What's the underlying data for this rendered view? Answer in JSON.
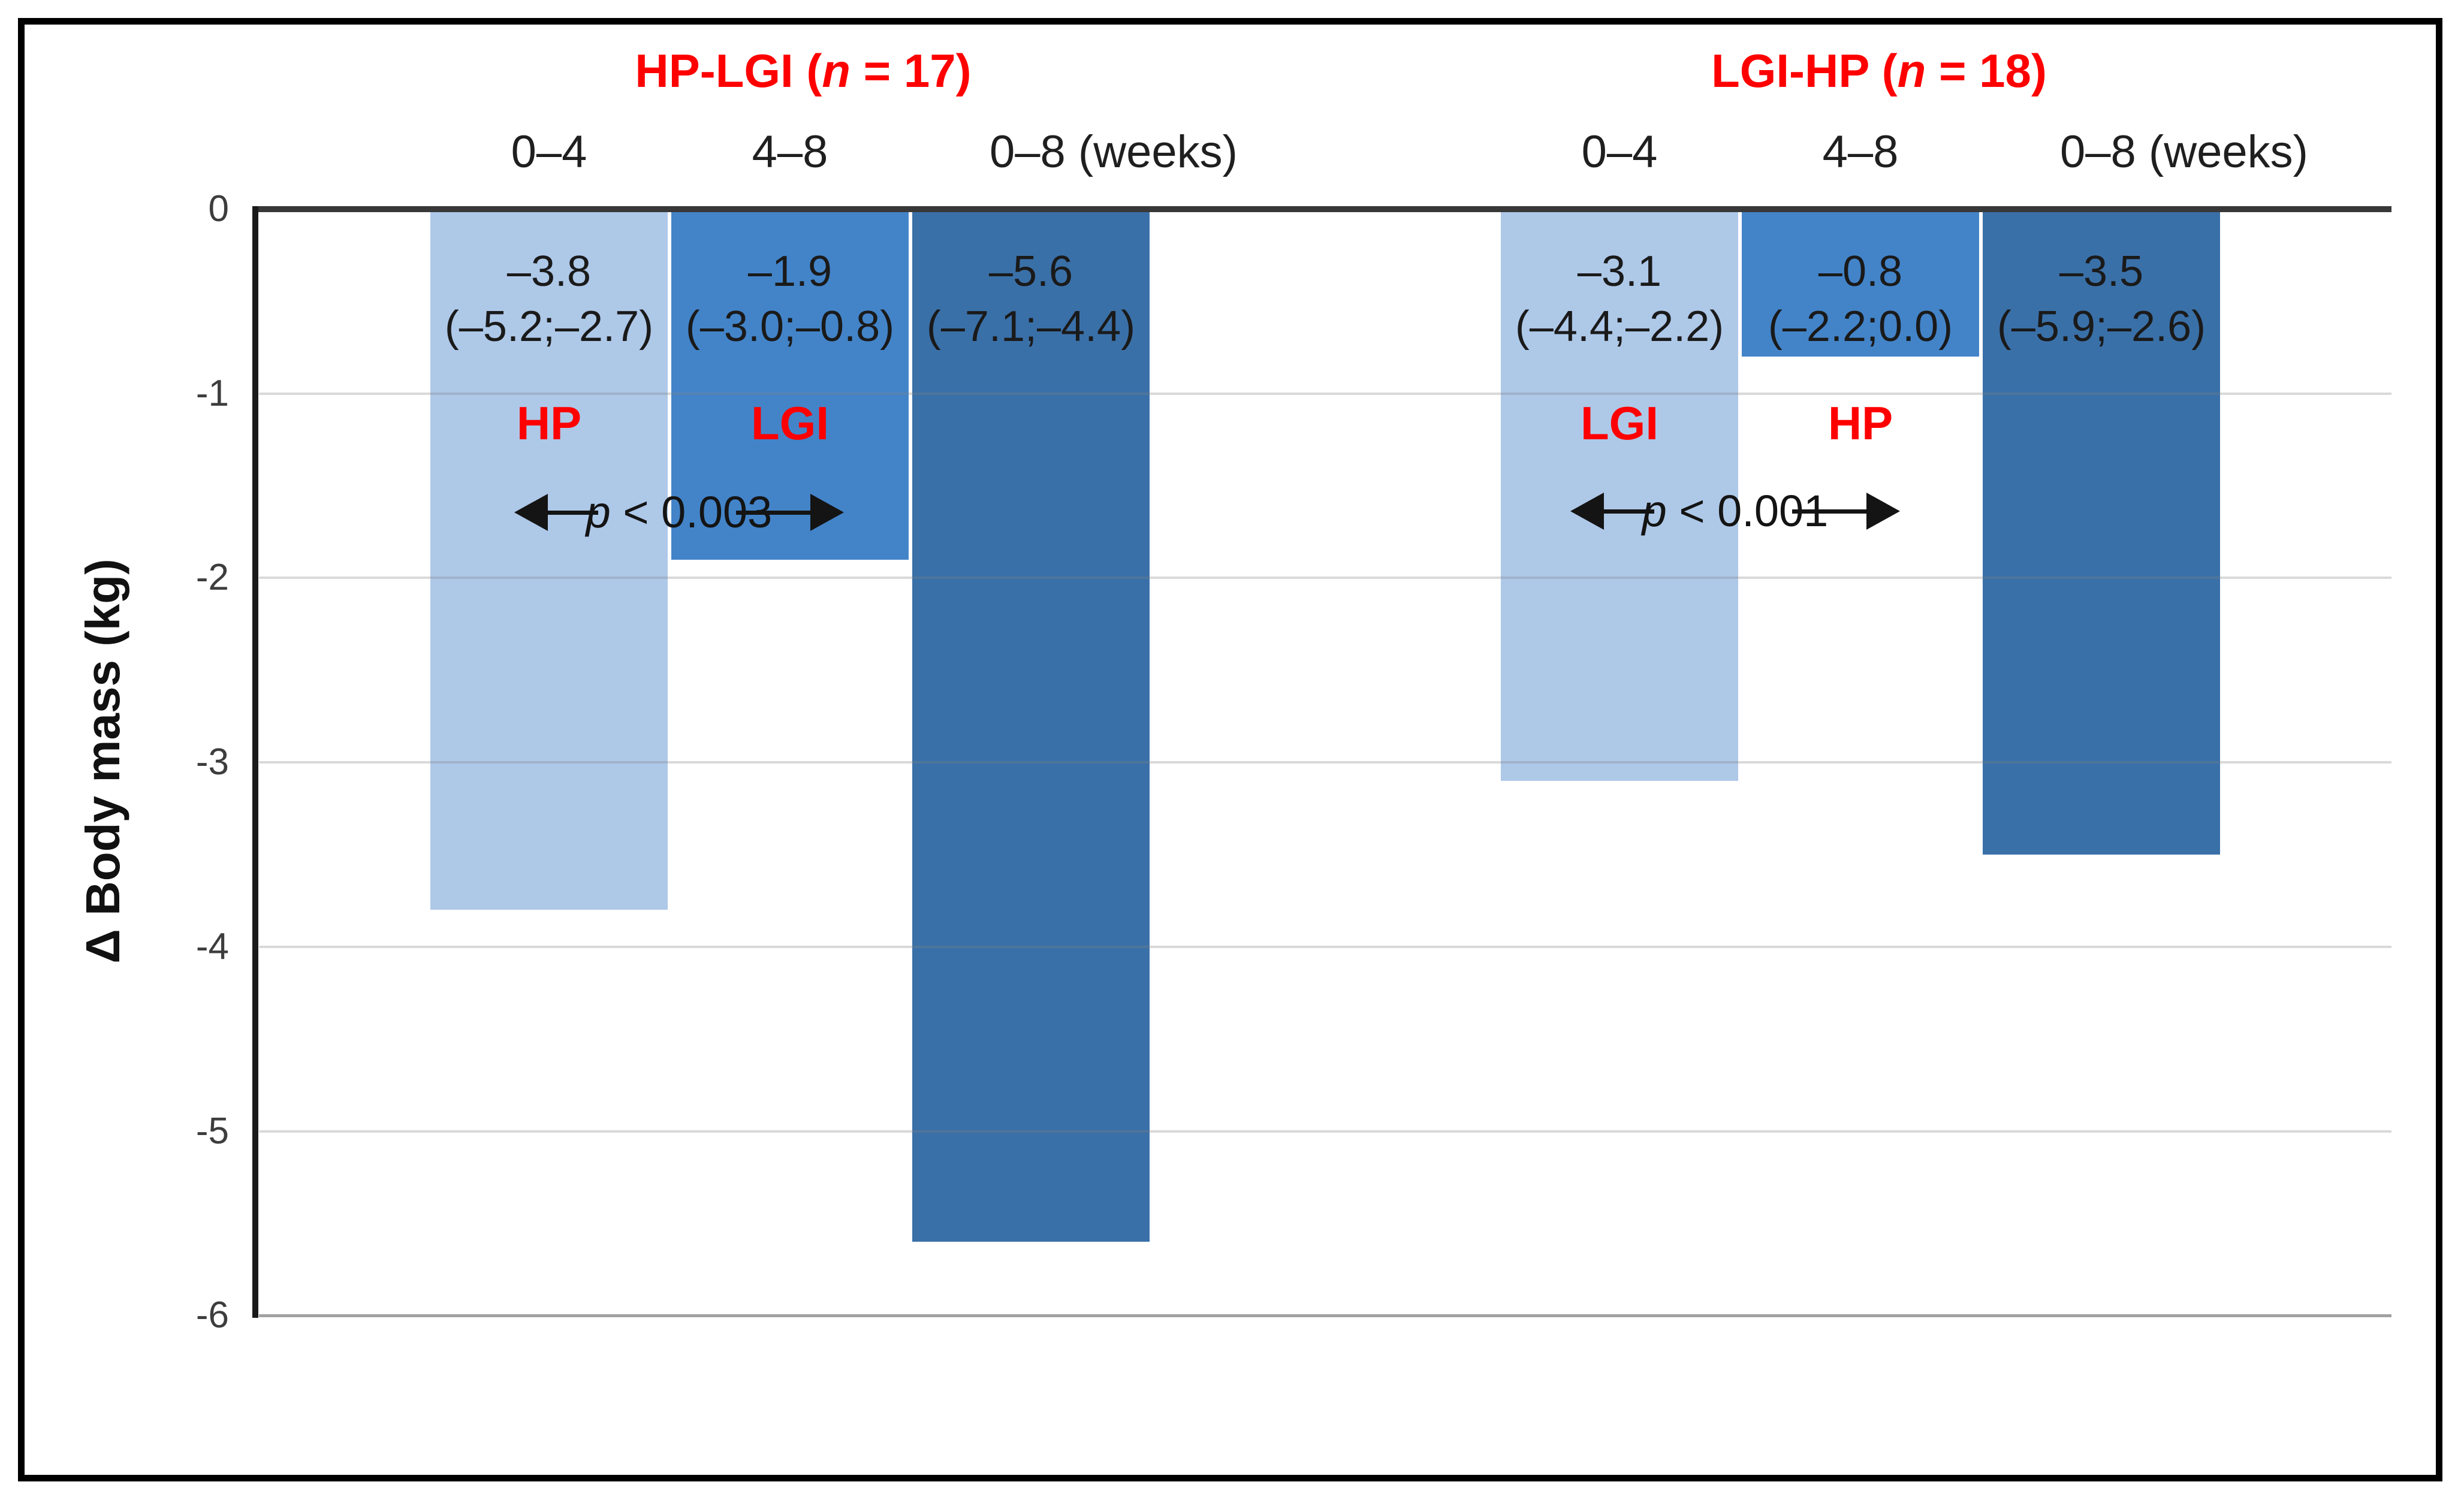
{
  "colors": {
    "bar_light": "#aec8e8",
    "bar_medium": "#4384c9",
    "bar_dark": "#3a70a8",
    "label_red": "#ff0000",
    "gridline": "rgba(128,128,128,0.30)",
    "gridline_last": "rgba(75,75,75,0.52)",
    "axis_black": "#1a1a1a"
  },
  "y_axis": {
    "title": "Δ Body mass (kg)",
    "tick_labels": [
      "0",
      "-1",
      "-2",
      "-3",
      "-4",
      "-5",
      "-6"
    ]
  },
  "chart_data": {
    "type": "bar",
    "title": "",
    "xlabel": "",
    "ylabel": "Δ Body mass (kg)",
    "ylim": [
      -6,
      0
    ],
    "yticks": [
      0,
      -1,
      -2,
      -3,
      -4,
      -5,
      -6
    ],
    "grid": true,
    "legend_position": "none",
    "groups": [
      {
        "title": {
          "pre": "HP-LGI (",
          "italic": "n",
          "post": " = 17)"
        },
        "n": 17,
        "p_annotation": {
          "italic": "p",
          "post": " < 0.003"
        },
        "bars": [
          {
            "period": "0–4",
            "value": -3.8,
            "ci": [
              -5.2,
              -2.7
            ],
            "value_label": "–3.8",
            "ci_label": "(–5.2;–2.7)",
            "diet": "HP",
            "shade": "light"
          },
          {
            "period": "4–8",
            "value": -1.9,
            "ci": [
              -3.0,
              -0.8
            ],
            "value_label": "–1.9",
            "ci_label": "(–3.0;–0.8)",
            "diet": "LGI",
            "shade": "medium"
          },
          {
            "period": "0–8 (weeks)",
            "value": -5.6,
            "ci": [
              -7.1,
              -4.4
            ],
            "value_label": "–5.6",
            "ci_label": "(–7.1;–4.4)",
            "diet": null,
            "shade": "dark"
          }
        ]
      },
      {
        "title": {
          "pre": "LGI-HP (",
          "italic": "n",
          "post": " = 18)"
        },
        "n": 18,
        "p_annotation": {
          "italic": "p",
          "post": " < 0.001"
        },
        "bars": [
          {
            "period": "0–4",
            "value": -3.1,
            "ci": [
              -4.4,
              -2.2
            ],
            "value_label": "–3.1",
            "ci_label": "(–4.4;–2.2)",
            "diet": "LGI",
            "shade": "light"
          },
          {
            "period": "4–8",
            "value": -0.8,
            "ci": [
              -2.2,
              0.0
            ],
            "value_label": "–0.8",
            "ci_label": "(–2.2;0.0)",
            "diet": "HP",
            "shade": "medium"
          },
          {
            "period": "0–8 (weeks)",
            "value": -3.5,
            "ci": [
              -5.9,
              -2.6
            ],
            "value_label": "–3.5",
            "ci_label": "(–5.9;–2.6)",
            "diet": null,
            "shade": "dark"
          }
        ]
      }
    ]
  }
}
